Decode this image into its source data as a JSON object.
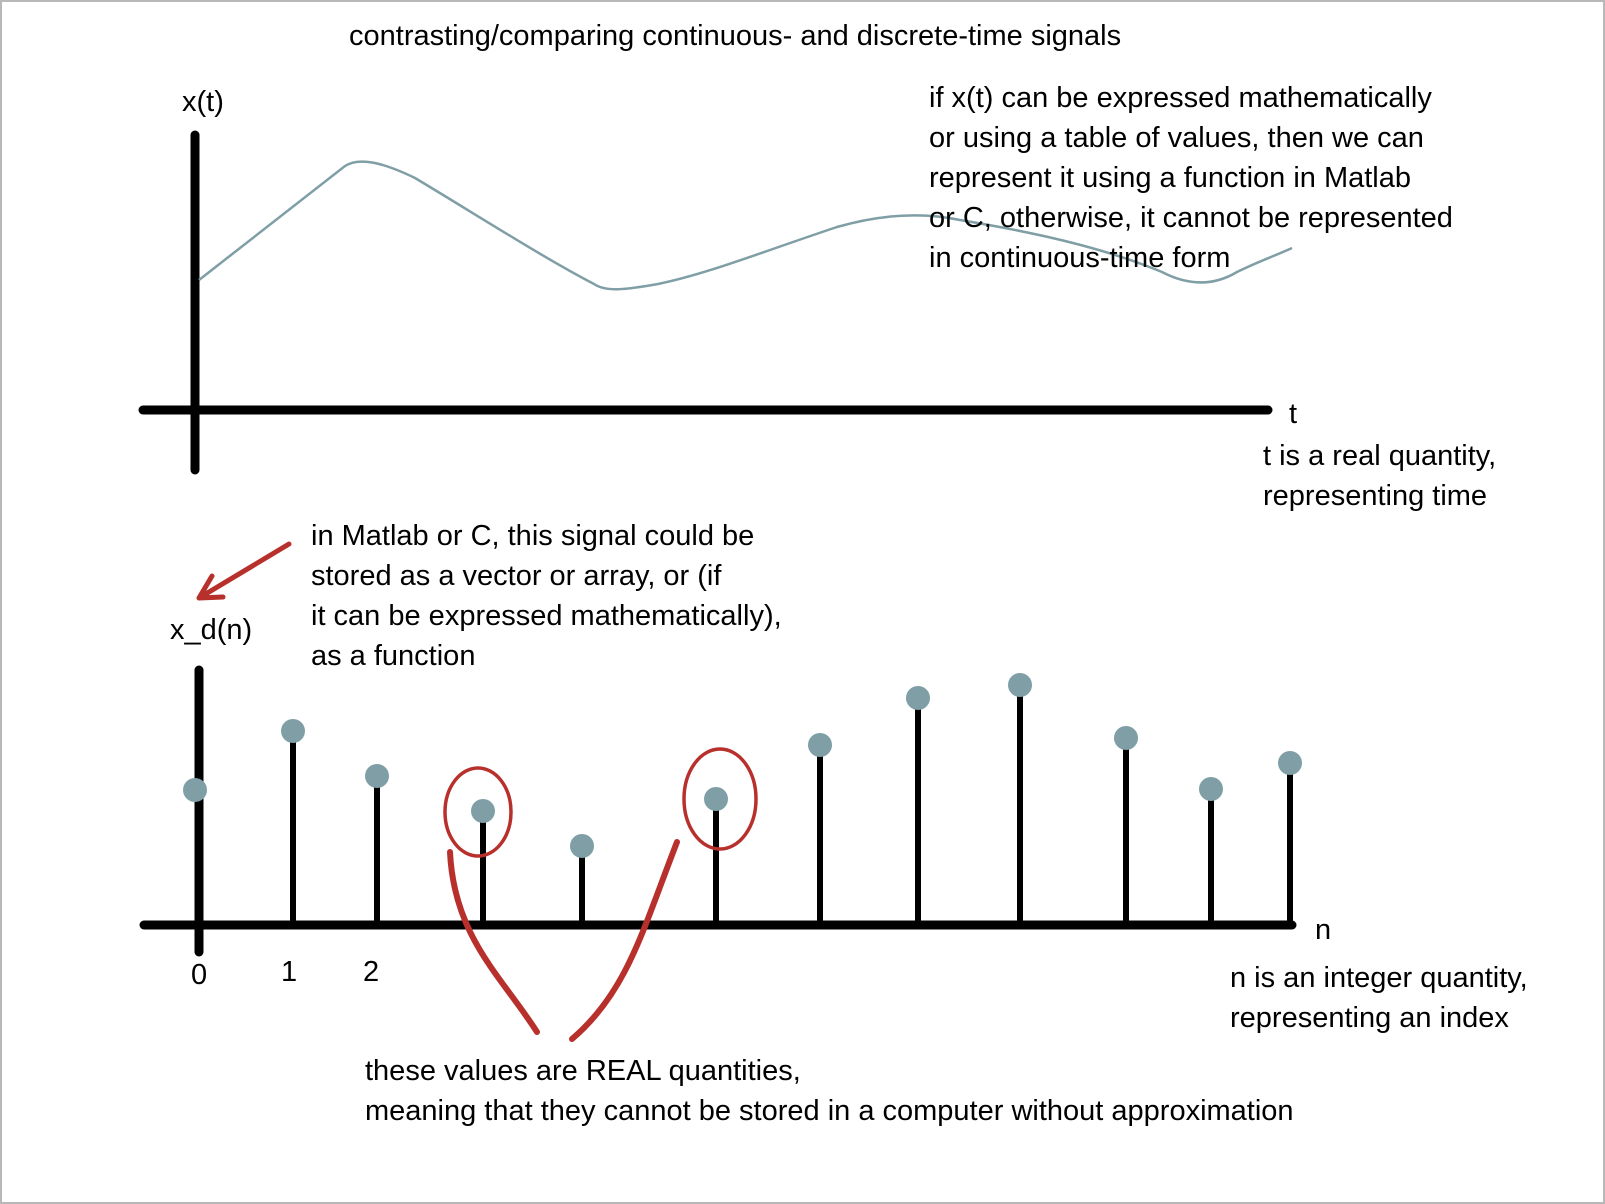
{
  "title": "contrasting/comparing continuous- and discrete-time signals",
  "continuous": {
    "y_label": "x(t)",
    "x_label": "t",
    "note_lines": [
      "if x(t) can be expressed mathematically",
      "or using a table of values, then we can",
      "represent it using a function in Matlab",
      "or C, otherwise, it cannot be represented",
      "in continuous-time form"
    ],
    "axis_note_lines": [
      "t is a real quantity,",
      "representing time"
    ]
  },
  "discrete": {
    "y_label": "x_d(n)",
    "x_label": "n",
    "tick_labels": [
      "0",
      "1",
      "2"
    ],
    "storage_note_lines": [
      "in Matlab or C, this signal could be",
      "stored as a vector or array, or (if",
      "it can be expressed mathematically),",
      "as a function"
    ],
    "axis_note_lines": [
      "n is an integer quantity,",
      "representing an index"
    ],
    "real_note_lines": [
      "these values are REAL quantities,",
      "meaning that they cannot be stored in a computer without approximation"
    ]
  },
  "colors": {
    "signal": "#7f9ea6",
    "annotation": "#b8302c",
    "axis": "#000000"
  }
}
